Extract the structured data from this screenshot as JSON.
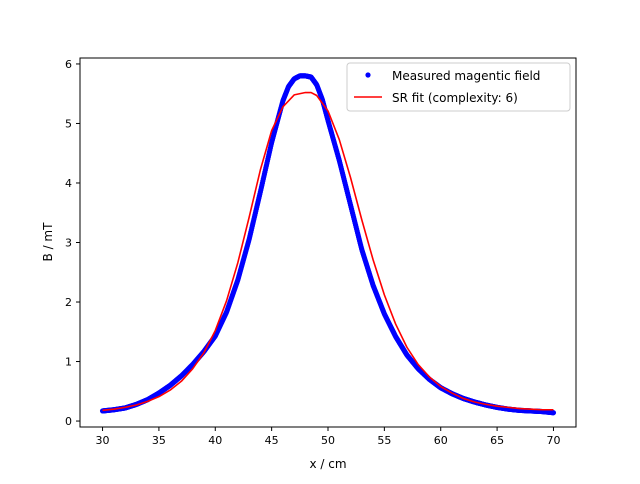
{
  "chart_data": {
    "type": "scatter",
    "title": "",
    "xlabel": "x / cm",
    "ylabel": "B / mT",
    "xlim": [
      28.0,
      72.0
    ],
    "ylim": [
      -0.1,
      6.1
    ],
    "xticks": [
      30,
      35,
      40,
      45,
      50,
      55,
      60,
      65,
      70
    ],
    "yticks": [
      0,
      1,
      2,
      3,
      4,
      5,
      6
    ],
    "grid": false,
    "legend_position": "upper right",
    "series": [
      {
        "name": "Measured magentic field",
        "kind": "scatter",
        "color": "#0000ff",
        "x": [
          30,
          31,
          32,
          33,
          34,
          35,
          36,
          37,
          38,
          39,
          40,
          41,
          42,
          43,
          44,
          45,
          46,
          46.5,
          47,
          47.5,
          48,
          48.5,
          49,
          49.5,
          50,
          51,
          52,
          53,
          54,
          55,
          56,
          57,
          58,
          59,
          60,
          61,
          62,
          63,
          64,
          65,
          66,
          67,
          68,
          69,
          70
        ],
        "y": [
          0.17,
          0.19,
          0.22,
          0.28,
          0.36,
          0.47,
          0.6,
          0.76,
          0.95,
          1.17,
          1.43,
          1.83,
          2.37,
          3.05,
          3.85,
          4.68,
          5.38,
          5.62,
          5.75,
          5.8,
          5.8,
          5.78,
          5.65,
          5.4,
          5.05,
          4.38,
          3.63,
          2.88,
          2.28,
          1.8,
          1.42,
          1.11,
          0.88,
          0.7,
          0.56,
          0.46,
          0.38,
          0.32,
          0.27,
          0.23,
          0.2,
          0.18,
          0.17,
          0.16,
          0.14
        ]
      },
      {
        "name": "SR fit (complexity: 6)",
        "kind": "line",
        "color": "#ff0000",
        "x": [
          30,
          31,
          32,
          33,
          34,
          35,
          36,
          37,
          38,
          39,
          40,
          41,
          42,
          43,
          44,
          45,
          46,
          47,
          48,
          48.5,
          49,
          50,
          51,
          52,
          53,
          54,
          55,
          56,
          57,
          58,
          59,
          60,
          61,
          62,
          63,
          64,
          65,
          66,
          67,
          68,
          69,
          70
        ],
        "y": [
          0.18,
          0.2,
          0.23,
          0.27,
          0.33,
          0.41,
          0.52,
          0.67,
          0.88,
          1.15,
          1.52,
          2.02,
          2.66,
          3.42,
          4.22,
          4.88,
          5.28,
          5.48,
          5.52,
          5.52,
          5.47,
          5.21,
          4.73,
          4.09,
          3.38,
          2.71,
          2.12,
          1.63,
          1.24,
          0.95,
          0.74,
          0.58,
          0.47,
          0.38,
          0.32,
          0.28,
          0.25,
          0.23,
          0.21,
          0.2,
          0.19,
          0.19
        ]
      }
    ]
  }
}
